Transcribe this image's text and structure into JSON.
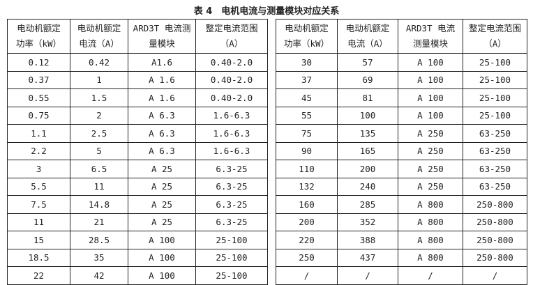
{
  "title": "表 4　电机电流与测量模块对应关系",
  "headers": [
    [
      "电动机额定",
      "功率（kW）"
    ],
    [
      "电动机额定",
      "电流（A）"
    ],
    [
      "ARD3T 电流测",
      "量模块"
    ],
    [
      "整定电流范围",
      "（A）"
    ]
  ],
  "headers_right": [
    [
      "电动机额定",
      "功率（kW）"
    ],
    [
      "电动机额定",
      "电流（A）"
    ],
    [
      "ARD3T 电流",
      "测量模块"
    ],
    [
      "整定电流范围",
      "（A）"
    ]
  ],
  "left_rows": [
    [
      "0.12",
      "0.42",
      "A1.6",
      "0.40-2.0"
    ],
    [
      "0.37",
      "1",
      "A 1.6",
      "0.40-2.0"
    ],
    [
      "0.55",
      "1.5",
      "A 1.6",
      "0.40-2.0"
    ],
    [
      "0.75",
      "2",
      "A 6.3",
      "1.6-6.3"
    ],
    [
      "1.1",
      "2.5",
      "A 6.3",
      "1.6-6.3"
    ],
    [
      "2.2",
      "5",
      "A 6.3",
      "1.6-6.3"
    ],
    [
      "3",
      "6.5",
      "A 25",
      "6.3-25"
    ],
    [
      "5.5",
      "11",
      "A 25",
      "6.3-25"
    ],
    [
      "7.5",
      "14.8",
      "A 25",
      "6.3-25"
    ],
    [
      "11",
      "21",
      "A 25",
      "6.3-25"
    ],
    [
      "15",
      "28.5",
      "A 100",
      "25-100"
    ],
    [
      "18.5",
      "35",
      "A 100",
      "25-100"
    ],
    [
      "22",
      "42",
      "A 100",
      "25-100"
    ]
  ],
  "right_rows": [
    [
      "30",
      "57",
      "A 100",
      "25-100"
    ],
    [
      "37",
      "69",
      "A 100",
      "25-100"
    ],
    [
      "45",
      "81",
      "A 100",
      "25-100"
    ],
    [
      "55",
      "100",
      "A 100",
      "25-100"
    ],
    [
      "75",
      "135",
      "A 250",
      "63-250"
    ],
    [
      "90",
      "165",
      "A 250",
      "63-250"
    ],
    [
      "110",
      "200",
      "A 250",
      "63-250"
    ],
    [
      "132",
      "240",
      "A 250",
      "63-250"
    ],
    [
      "160",
      "285",
      "A 800",
      "250-800"
    ],
    [
      "200",
      "352",
      "A 800",
      "250-800"
    ],
    [
      "220",
      "388",
      "A 800",
      "250-800"
    ],
    [
      "250",
      "437",
      "A 800",
      "250-800"
    ],
    [
      "/",
      "/",
      "/",
      "/"
    ]
  ]
}
